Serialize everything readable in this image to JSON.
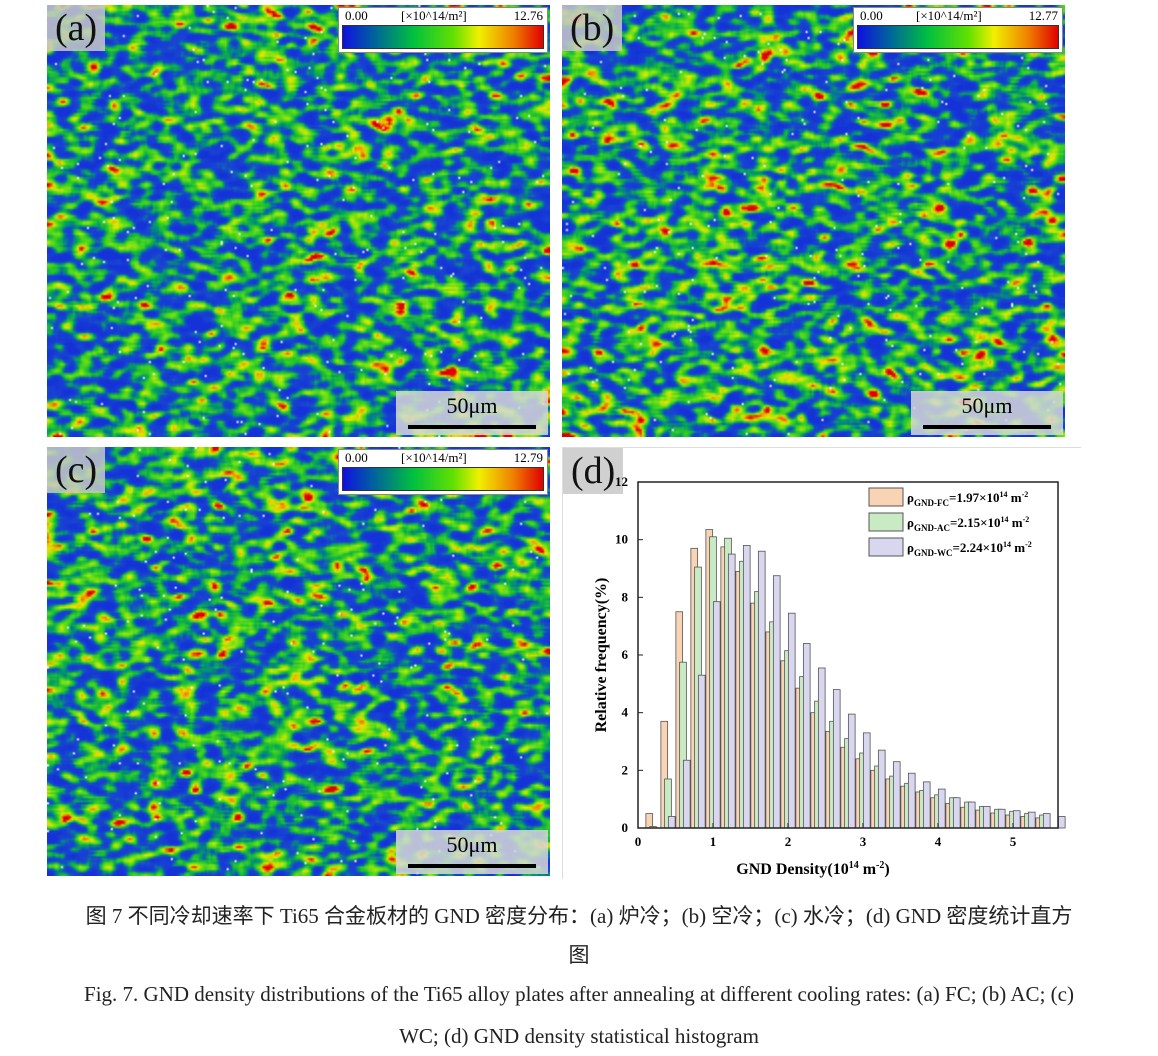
{
  "panels": [
    {
      "label": "(a)",
      "cbar_min": "0.00",
      "cbar_unit": "[×10^14/m²]",
      "cbar_max": "12.76",
      "scale": "50μm"
    },
    {
      "label": "(b)",
      "cbar_min": "0.00",
      "cbar_unit": "[×10^14/m²]",
      "cbar_max": "12.77",
      "scale": "50μm"
    },
    {
      "label": "(c)",
      "cbar_min": "0.00",
      "cbar_unit": "[×10^14/m²]",
      "cbar_max": "12.79",
      "scale": "50μm"
    }
  ],
  "panel_d_label": "(d)",
  "chart_data": {
    "type": "bar",
    "xlabel": "GND Density(10^14 m^-2)",
    "ylabel": "Relative frequency(%)",
    "xlim": [
      0,
      5.6
    ],
    "ylim": [
      0,
      12
    ],
    "xticks": [
      "0",
      "1",
      "2",
      "3",
      "4",
      "5"
    ],
    "yticks": [
      "0",
      "2",
      "4",
      "6",
      "8",
      "10",
      "12"
    ],
    "legend_position": "top-right",
    "series": [
      {
        "name": "ρGND-FC=1.97×10^14 m^-2",
        "sym": "ρ",
        "sub": "GND-FC",
        "val": "=1.97×10",
        "exp": "14",
        "unit": " m",
        "uexp": "-2",
        "color": "#f9d4b4",
        "x_start": 0.15,
        "values": [
          0.5,
          3.7,
          7.5,
          9.7,
          10.35,
          9.75,
          8.9,
          7.8,
          6.8,
          5.8,
          4.85,
          4.0,
          3.35,
          2.8,
          2.4,
          2.0,
          1.7,
          1.45,
          1.25,
          1.05,
          0.85,
          0.72,
          0.62,
          0.52,
          0.45,
          0.4,
          0.35
        ]
      },
      {
        "name": "ρGND-AC=2.15×10^14 m^-2",
        "sym": "ρ",
        "sub": "GND-AC",
        "val": "=2.15×10",
        "exp": "14",
        "unit": " m",
        "uexp": "-2",
        "color": "#c8ebc4",
        "x_start": 0.2,
        "values": [
          0.05,
          1.7,
          5.75,
          9.05,
          10.1,
          10.05,
          9.25,
          8.2,
          7.15,
          6.15,
          5.25,
          4.4,
          3.7,
          3.1,
          2.6,
          2.15,
          1.8,
          1.55,
          1.3,
          1.15,
          1.05,
          0.9,
          0.75,
          0.65,
          0.58,
          0.5,
          0.45
        ]
      },
      {
        "name": "ρGND-WC=2.24×10^14 m^-2",
        "sym": "ρ",
        "sub": "GND-WC",
        "val": "=2.24×10",
        "exp": "14",
        "unit": " m",
        "uexp": "-2",
        "color": "#d9d6ef",
        "x_start": 0.45,
        "values": [
          0.4,
          2.35,
          5.3,
          7.85,
          9.5,
          9.8,
          9.6,
          8.75,
          7.45,
          6.4,
          5.55,
          4.8,
          3.95,
          3.3,
          2.7,
          2.3,
          1.9,
          1.6,
          1.35,
          1.05,
          0.9,
          0.75,
          0.65,
          0.6,
          0.55,
          0.5,
          0.4
        ]
      }
    ],
    "bin_width": 0.2
  },
  "caption": {
    "zh_line1": "图 7  不同冷却速率下 Ti65 合金板材的 GND 密度分布：(a)  炉冷；(b)  空冷；(c)  水冷；(d) GND 密度统计直方",
    "zh_line2": "图",
    "en_line1": "Fig. 7. GND density distributions of the Ti65 alloy plates after annealing at different cooling rates: (a) FC; (b) AC; (c)",
    "en_line2": "WC; (d) GND density statistical histogram"
  }
}
